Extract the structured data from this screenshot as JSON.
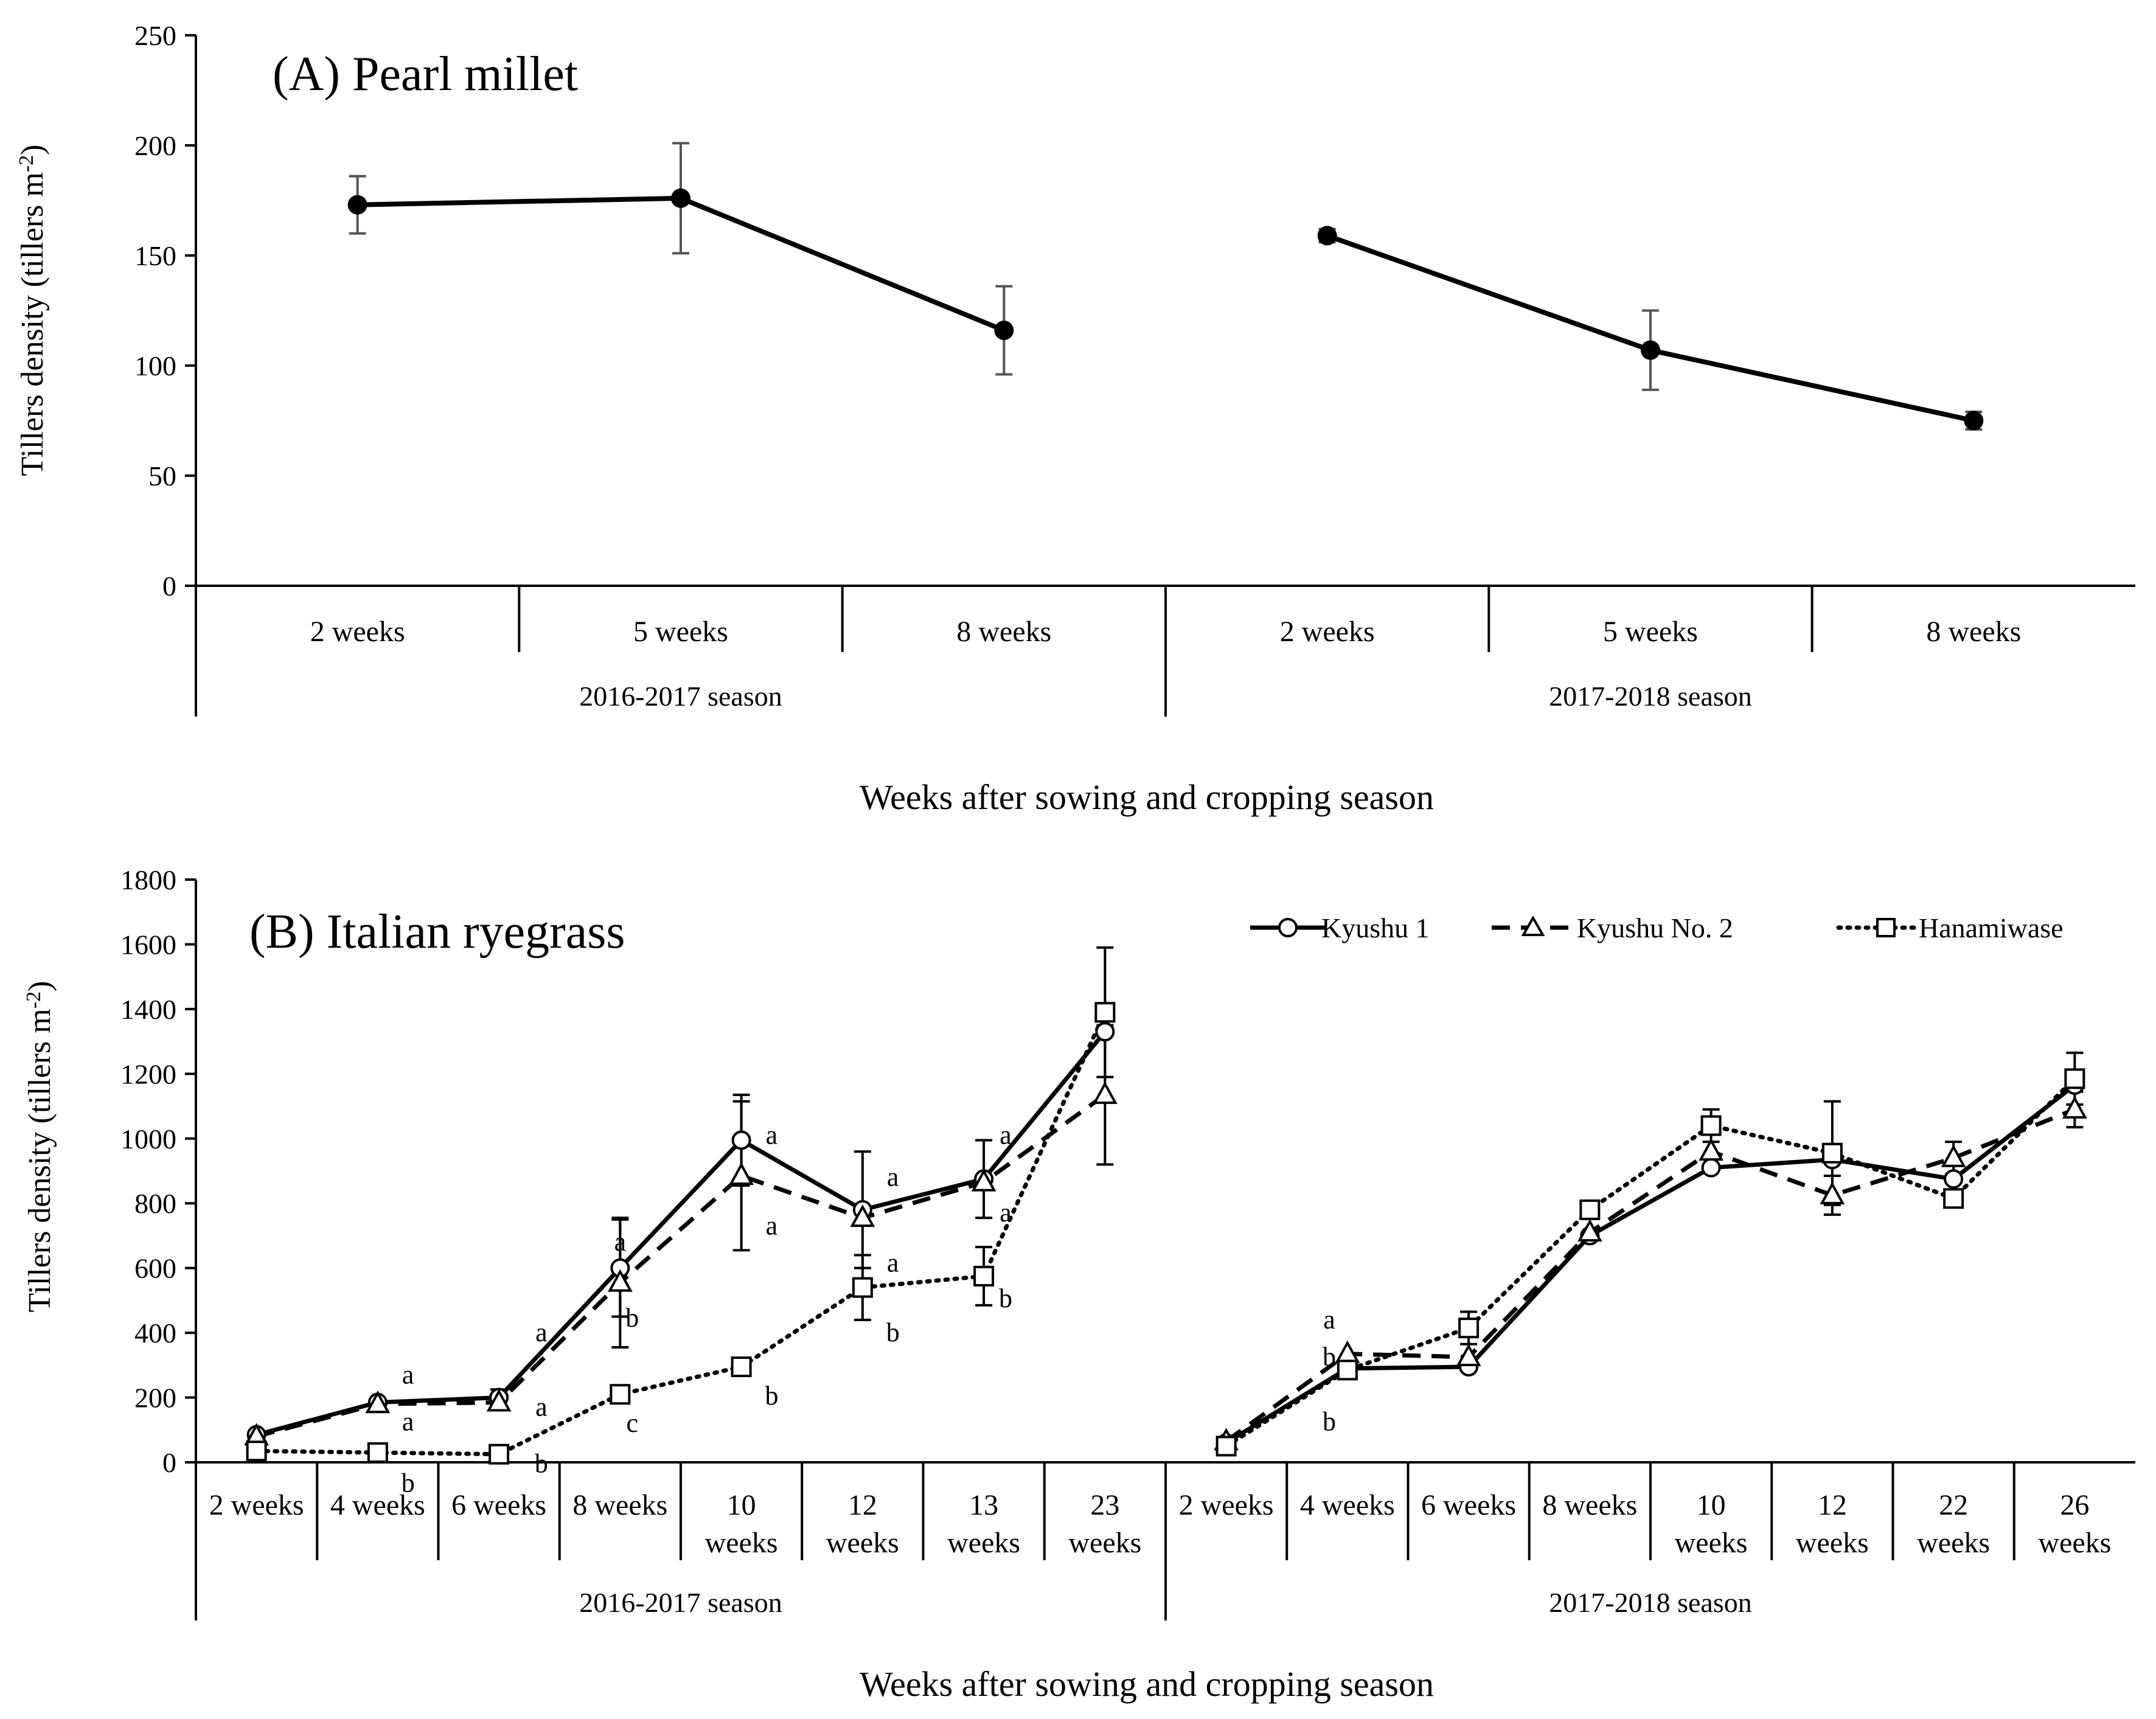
{
  "chart_data": [
    {
      "type": "line",
      "title": "(A) Pearl millet",
      "ylabel_main": "Tillers  density (tillers  m",
      "ylabel_sup": "-2",
      "ylabel_end": ")",
      "xlabel": "Weeks after sowing and cropping  season",
      "ylim": [
        0,
        250
      ],
      "yticks": [
        "0",
        "50",
        "100",
        "150",
        "200",
        "250"
      ],
      "groups": [
        {
          "season": "2016-2017 season",
          "categories": [
            "2 weeks",
            "5 weeks",
            "8 weeks"
          ],
          "values": [
            173,
            176,
            116
          ],
          "errors": [
            13,
            25,
            20
          ]
        },
        {
          "season": "2017-2018 season",
          "categories": [
            "2 weeks",
            "5 weeks",
            "8 weeks"
          ],
          "values": [
            159,
            107,
            75
          ],
          "errors": [
            3,
            18,
            4
          ]
        }
      ]
    },
    {
      "type": "line",
      "title": "(B) Italian  ryegrass",
      "ylabel_main": "Tillers  density (tillers  m",
      "ylabel_sup": "-2",
      "ylabel_end": ")",
      "xlabel": "Weeks after sowing and cropping  season",
      "ylim": [
        0,
        1800
      ],
      "yticks": [
        "0",
        "200",
        "400",
        "600",
        "800",
        "1000",
        "1200",
        "1400",
        "1600",
        "1800"
      ],
      "legend": [
        "Kyushu 1",
        "Kyushu No. 2",
        "Hanamiwase"
      ],
      "groups": [
        {
          "season": "2016-2017 season",
          "categories": [
            [
              "2 weeks"
            ],
            [
              "4 weeks"
            ],
            [
              "6 weeks"
            ],
            [
              "8 weeks"
            ],
            [
              "10",
              "weeks"
            ],
            [
              "12",
              "weeks"
            ],
            [
              "13",
              "weeks"
            ],
            [
              "23",
              "weeks"
            ]
          ],
          "series": [
            {
              "name": "Kyushu 1",
              "values": [
                85,
                185,
                200,
                600,
                995,
                780,
                875,
                1330
              ],
              "errors": [
                0,
                0,
                25,
                150,
                140,
                180,
                120,
                0
              ]
            },
            {
              "name": "Kyushu No. 2",
              "values": [
                80,
                180,
                185,
                555,
                885,
                755,
                865,
                1135
              ],
              "errors": [
                0,
                0,
                0,
                200,
                230,
                0,
                0,
                215
              ]
            },
            {
              "name": "Hanamiwase",
              "values": [
                35,
                30,
                25,
                210,
                295,
                540,
                575,
                1390
              ],
              "errors": [
                0,
                0,
                0,
                25,
                0,
                100,
                90,
                200
              ]
            }
          ],
          "letters": [
            {
              "text": "a",
              "x": 1.25,
              "y": 270
            },
            {
              "text": "a",
              "x": 1.25,
              "y": 125
            },
            {
              "text": "b",
              "x": 1.25,
              "y": -65
            },
            {
              "text": "a",
              "x": 2.35,
              "y": 400
            },
            {
              "text": "a",
              "x": 2.35,
              "y": 170
            },
            {
              "text": "b",
              "x": 2.35,
              "y": -5
            },
            {
              "text": "a",
              "x": 3.0,
              "y": 680
            },
            {
              "text": "b",
              "x": 3.1,
              "y": 445
            },
            {
              "text": "c",
              "x": 3.1,
              "y": 120
            },
            {
              "text": "a",
              "x": 4.25,
              "y": 1010
            },
            {
              "text": "a",
              "x": 4.25,
              "y": 730
            },
            {
              "text": "b",
              "x": 4.25,
              "y": 205
            },
            {
              "text": "a",
              "x": 5.25,
              "y": 880
            },
            {
              "text": "a",
              "x": 5.25,
              "y": 615
            },
            {
              "text": "b",
              "x": 5.25,
              "y": 400
            },
            {
              "text": "a",
              "x": 6.18,
              "y": 1010
            },
            {
              "text": "a",
              "x": 6.18,
              "y": 770
            },
            {
              "text": "b",
              "x": 6.18,
              "y": 505
            }
          ]
        },
        {
          "season": "2017-2018 season",
          "categories": [
            [
              "2 weeks"
            ],
            [
              "4 weeks"
            ],
            [
              "6 weeks"
            ],
            [
              "8 weeks"
            ],
            [
              "10",
              "weeks"
            ],
            [
              "12",
              "weeks"
            ],
            [
              "22",
              "weeks"
            ],
            [
              "26",
              "weeks"
            ]
          ],
          "series": [
            {
              "name": "Kyushu 1",
              "values": [
                60,
                290,
                295,
                700,
                910,
                935,
                875,
                1165
              ],
              "errors": [
                0,
                0,
                0,
                0,
                0,
                0,
                0,
                0
              ]
            },
            {
              "name": "Kyushu No. 2",
              "values": [
                65,
                335,
                325,
                710,
                960,
                825,
                940,
                1090
              ],
              "errors": [
                0,
                0,
                0,
                0,
                0,
                60,
                50,
                55
              ]
            },
            {
              "name": "Hanamiwase",
              "values": [
                50,
                285,
                415,
                780,
                1040,
                955,
                815,
                1185
              ],
              "errors": [
                0,
                0,
                50,
                0,
                50,
                160,
                0,
                80
              ]
            }
          ],
          "letters": [
            {
              "text": "a",
              "x": 0.85,
              "y": 440
            },
            {
              "text": "b",
              "x": 0.85,
              "y": 325
            },
            {
              "text": "b",
              "x": 0.85,
              "y": 125
            }
          ]
        }
      ]
    }
  ]
}
